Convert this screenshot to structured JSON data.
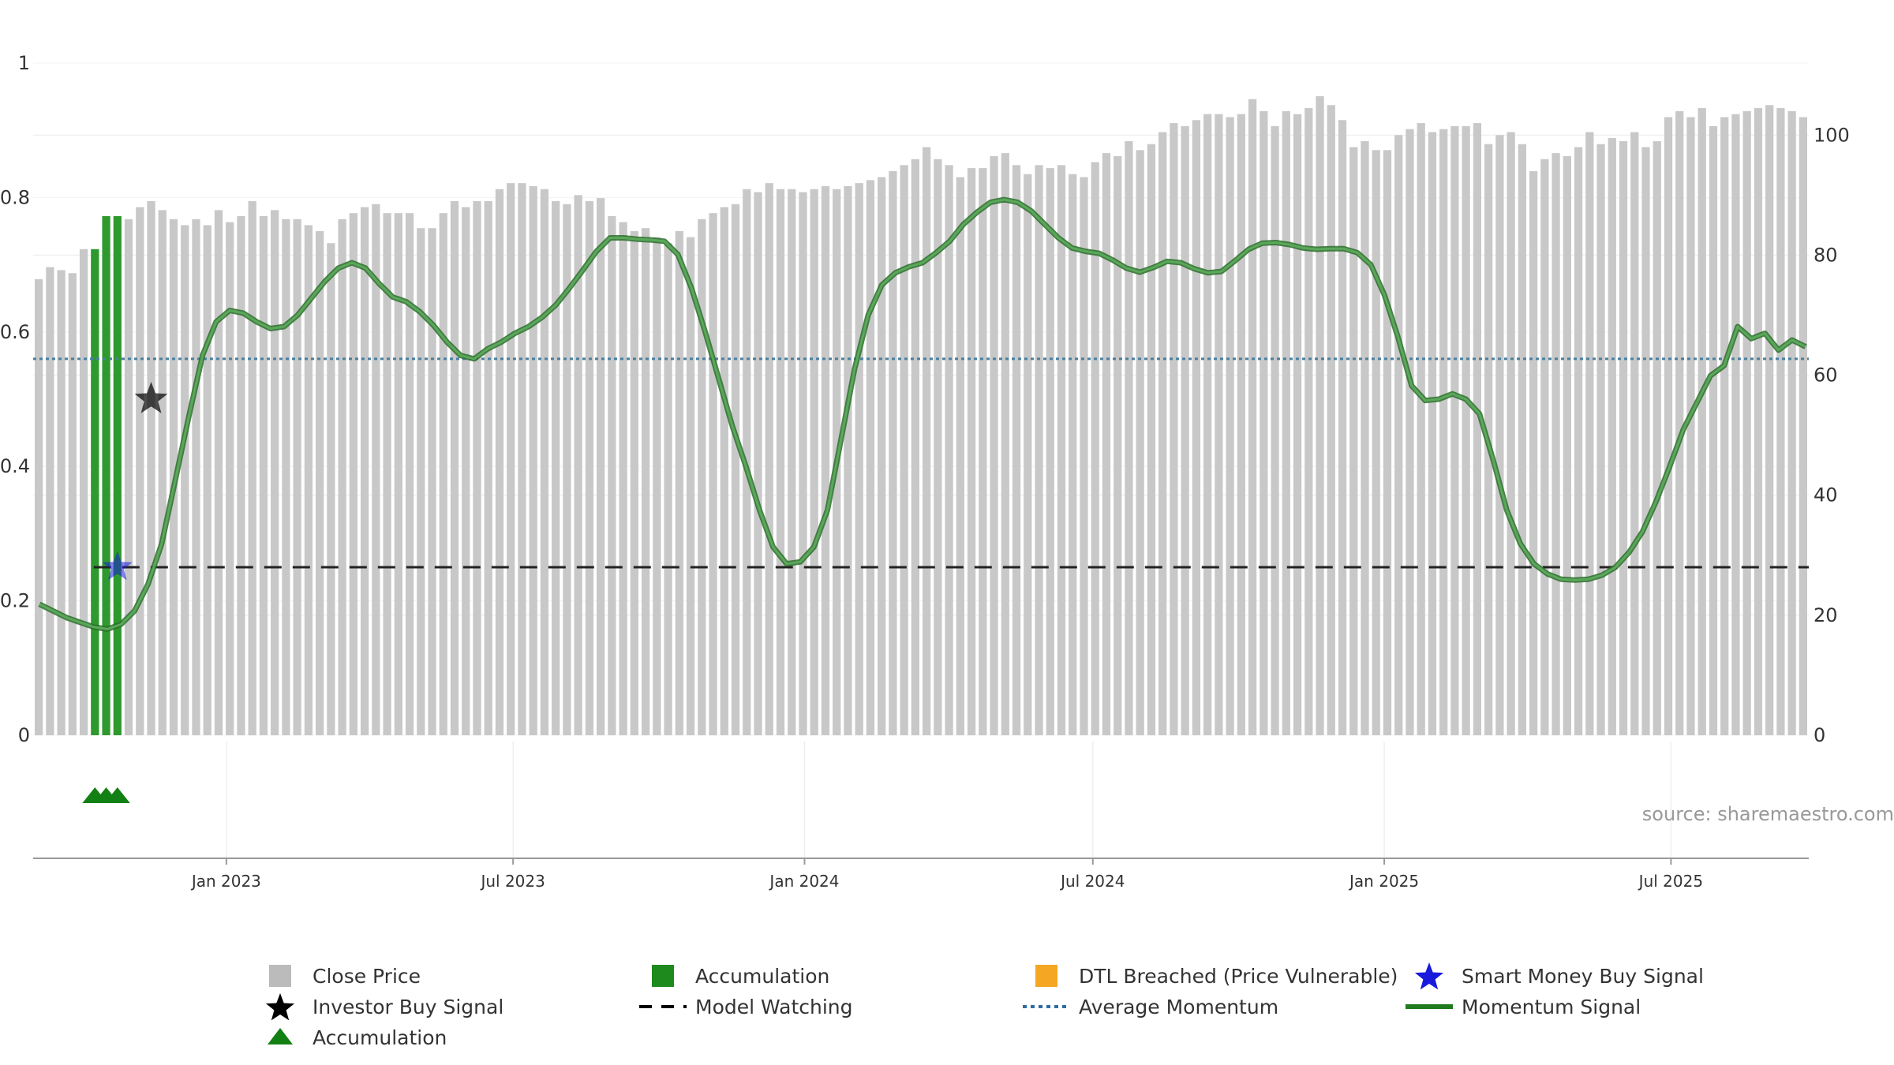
{
  "chart_data": {
    "type": "bar",
    "source": "source: sharemaestro.com",
    "left_axis": {
      "range": [
        0,
        1
      ],
      "ticks": [
        "0",
        "0.2",
        "0.4",
        "0.6",
        "0.8",
        "1"
      ],
      "tick_values": [
        0,
        0.2,
        0.4,
        0.6,
        0.8,
        1
      ]
    },
    "right_axis": {
      "range": [
        0,
        112
      ],
      "ticks": [
        "0",
        "20",
        "40",
        "60",
        "80",
        "100"
      ],
      "tick_values": [
        0,
        20,
        40,
        60,
        80,
        100
      ]
    },
    "x_axis": {
      "start": "2022-09-01",
      "end": "2025-09-26",
      "ticks": [
        {
          "label": "Jan 2023",
          "date": "2023-01-01"
        },
        {
          "label": "Jul 2023",
          "date": "2023-07-01"
        },
        {
          "label": "Jan 2024",
          "date": "2024-01-01"
        },
        {
          "label": "Jul 2024",
          "date": "2024-07-01"
        },
        {
          "label": "Jan 2025",
          "date": "2025-01-01"
        },
        {
          "label": "Jul 2025",
          "date": "2025-07-01"
        }
      ]
    },
    "close_price": [
      76,
      78,
      77.5,
      77,
      81,
      80.5,
      86,
      86,
      86,
      88,
      89,
      87.5,
      86,
      85,
      86,
      85,
      87.5,
      85.5,
      86.5,
      89,
      86.5,
      87.5,
      86,
      86,
      85,
      84,
      82,
      86,
      87,
      88,
      88.5,
      87,
      87,
      87,
      84.5,
      84.5,
      87,
      89,
      88,
      89,
      89,
      91,
      92,
      92,
      91.5,
      91,
      89,
      88.5,
      90,
      89,
      89.5,
      86.5,
      85.5,
      84,
      84.5,
      83,
      82,
      84,
      83,
      86,
      87,
      88,
      88.5,
      91,
      90.5,
      92,
      91,
      91,
      90.5,
      91,
      91.5,
      91,
      91.5,
      92,
      92.5,
      93,
      94,
      95,
      96,
      98,
      96,
      95,
      93,
      94.5,
      94.5,
      96.5,
      97,
      95,
      93.5,
      95,
      94.5,
      95,
      93.5,
      93,
      95.5,
      97,
      96.5,
      99,
      97.5,
      98.5,
      100.5,
      102,
      101.5,
      102.5,
      103.5,
      103.5,
      103,
      103.5,
      106,
      104,
      101.5,
      104,
      103.5,
      104.5,
      106.5,
      105,
      102.5,
      98,
      99,
      97.5,
      97.5,
      100,
      101,
      102,
      100.5,
      101,
      101.5,
      101.5,
      102,
      98.5,
      100,
      100.5,
      98.5,
      94,
      96,
      97,
      96.5,
      98,
      100.5,
      98.5,
      99.5,
      99,
      100.5,
      98,
      99,
      103,
      104,
      103,
      104.5,
      101.5,
      103,
      103.5,
      104,
      104.5,
      105,
      104.5,
      104,
      103
    ],
    "accumulation_bar_indices": [
      5,
      6,
      7
    ],
    "accumulation_bar_values": [
      81,
      86.5,
      86.5
    ],
    "momentum": [
      0.195,
      0.185,
      0.175,
      0.168,
      0.161,
      0.158,
      0.165,
      0.185,
      0.225,
      0.285,
      0.38,
      0.475,
      0.565,
      0.615,
      0.632,
      0.628,
      0.615,
      0.605,
      0.608,
      0.625,
      0.65,
      0.675,
      0.695,
      0.703,
      0.695,
      0.672,
      0.652,
      0.645,
      0.63,
      0.61,
      0.585,
      0.565,
      0.56,
      0.575,
      0.585,
      0.598,
      0.608,
      0.622,
      0.64,
      0.665,
      0.692,
      0.72,
      0.74,
      0.74,
      0.738,
      0.737,
      0.735,
      0.715,
      0.665,
      0.6,
      0.53,
      0.46,
      0.4,
      0.335,
      0.28,
      0.255,
      0.258,
      0.28,
      0.335,
      0.44,
      0.545,
      0.625,
      0.67,
      0.688,
      0.697,
      0.703,
      0.718,
      0.735,
      0.76,
      0.778,
      0.793,
      0.797,
      0.793,
      0.78,
      0.76,
      0.74,
      0.725,
      0.72,
      0.717,
      0.707,
      0.695,
      0.689,
      0.696,
      0.705,
      0.703,
      0.694,
      0.688,
      0.69,
      0.706,
      0.723,
      0.732,
      0.733,
      0.73,
      0.725,
      0.723,
      0.724,
      0.724,
      0.718,
      0.7,
      0.655,
      0.592,
      0.52,
      0.498,
      0.5,
      0.508,
      0.5,
      0.478,
      0.41,
      0.335,
      0.285,
      0.255,
      0.24,
      0.232,
      0.231,
      0.232,
      0.238,
      0.25,
      0.272,
      0.303,
      0.348,
      0.4,
      0.455,
      0.495,
      0.535,
      0.55,
      0.608,
      0.59,
      0.598,
      0.573,
      0.588,
      0.578
    ],
    "average_momentum": 0.56,
    "model_watching_level": 0.25,
    "investor_buy_signal": {
      "bar_index": 10,
      "value": 0.5
    },
    "smart_money_buy_signal": {
      "bar_index": 7,
      "value": 0.25
    },
    "accumulation_triangles_bar_indices": [
      5,
      6,
      7
    ],
    "legend": [
      {
        "label": "Close Price",
        "symbol": "square",
        "color": "#bbbbbb"
      },
      {
        "label": "Accumulation",
        "symbol": "square",
        "color": "#1e8a1e"
      },
      {
        "label": "DTL Breached (Price Vulnerable)",
        "symbol": "square",
        "color": "#f5a623"
      },
      {
        "label": "Smart Money Buy Signal",
        "symbol": "star",
        "color": "#1a1adc"
      },
      {
        "label": "Investor Buy Signal",
        "symbol": "star",
        "color": "#000000"
      },
      {
        "label": "Model Watching",
        "symbol": "dash",
        "color": "#000000"
      },
      {
        "label": "Average Momentum",
        "symbol": "dotted",
        "color": "#2e6da4"
      },
      {
        "label": "Momentum Signal",
        "symbol": "line",
        "color": "#1e7b1e"
      },
      {
        "label": "Accumulation",
        "symbol": "triangle",
        "color": "#138013"
      }
    ],
    "colors": {
      "bar": "#c8c8c8",
      "accumulation": "#2e9a2e",
      "momentum": "#3f8f3f",
      "average": "#4a7fa0",
      "watching": "#222222",
      "grid": "#ebebeb",
      "axis": "#999999"
    }
  }
}
